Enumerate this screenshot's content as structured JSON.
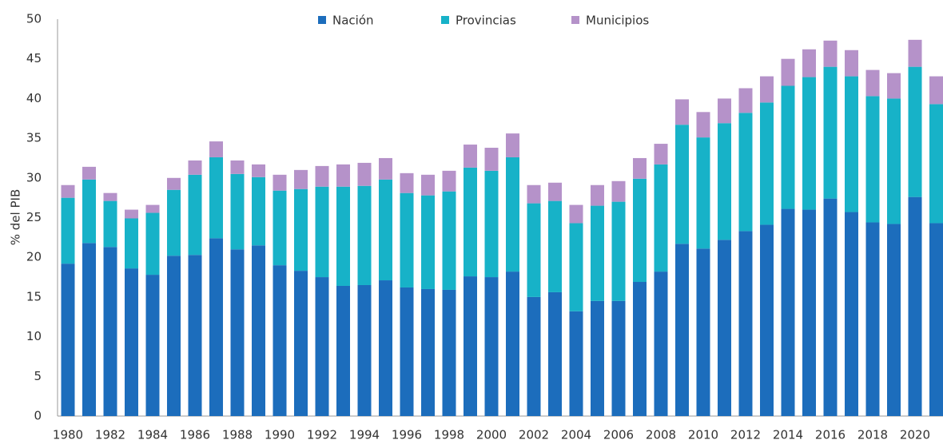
{
  "chart_data": {
    "type": "stacked_bar",
    "y_label": "% del PIB",
    "categories": [
      "1980",
      null,
      "1982",
      null,
      "1984",
      null,
      "1986",
      null,
      "1988",
      null,
      "1990",
      null,
      "1992",
      null,
      "1994",
      null,
      "1996",
      null,
      "1998",
      null,
      "2000",
      null,
      "2002",
      null,
      "2004",
      null,
      "2006",
      null,
      "2008",
      null,
      "2010",
      null,
      "2012",
      null,
      "2014",
      null,
      "2016",
      null,
      "2018",
      null,
      "2020",
      null
    ],
    "series": [
      {
        "name": "Nación",
        "color": "#1c6dbc",
        "values": [
          19.2,
          21.8,
          21.3,
          18.6,
          17.8,
          20.2,
          20.3,
          22.4,
          21.0,
          21.5,
          19.0,
          18.3,
          17.5,
          16.4,
          16.5,
          17.1,
          16.2,
          16.0,
          15.9,
          17.6,
          17.5,
          18.2,
          15.0,
          15.6,
          13.2,
          14.5,
          14.5,
          16.9,
          18.2,
          21.7,
          21.1,
          22.2,
          23.3,
          24.1,
          26.1,
          26.0,
          27.4,
          25.7,
          24.4,
          24.2,
          27.6,
          24.3
        ]
      },
      {
        "name": "Provincias",
        "color": "#17b2c8",
        "values": [
          8.3,
          8.0,
          5.8,
          6.3,
          7.8,
          8.3,
          10.1,
          10.2,
          9.5,
          8.6,
          9.4,
          10.3,
          11.4,
          12.5,
          12.5,
          12.7,
          11.9,
          11.8,
          12.4,
          13.7,
          13.4,
          14.4,
          11.8,
          11.5,
          11.1,
          12.0,
          12.5,
          13.0,
          13.5,
          15.0,
          14.0,
          14.7,
          14.9,
          15.4,
          15.5,
          16.7,
          16.6,
          17.1,
          15.9,
          15.8,
          16.4,
          15.0
        ]
      },
      {
        "name": "Municipios",
        "color": "#b592c9",
        "values": [
          1.6,
          1.6,
          1.0,
          1.1,
          1.0,
          1.5,
          1.8,
          2.0,
          1.7,
          1.6,
          2.0,
          2.4,
          2.6,
          2.8,
          2.9,
          2.7,
          2.5,
          2.6,
          2.6,
          2.9,
          2.9,
          3.0,
          2.3,
          2.3,
          2.3,
          2.6,
          2.6,
          2.6,
          2.6,
          3.2,
          3.2,
          3.1,
          3.1,
          3.3,
          3.4,
          3.5,
          3.3,
          3.3,
          3.3,
          3.2,
          3.4,
          3.5
        ]
      }
    ],
    "ylim": [
      0,
      50
    ],
    "yticks": [
      0,
      5,
      10,
      15,
      20,
      25,
      30,
      35,
      40,
      45,
      50
    ],
    "legend": "top"
  }
}
